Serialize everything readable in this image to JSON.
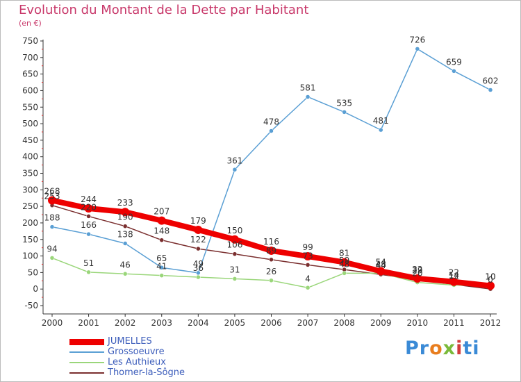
{
  "title": "Evolution du Montant de la Dette par Habitant",
  "subtitle": "(en €)",
  "brand": {
    "parts": [
      "Pr",
      "o",
      "x",
      "i",
      "ti"
    ],
    "colors": [
      "#3a8ad6",
      "#e87d1e",
      "#7aba3a",
      "#d33a3a",
      "#3a8ad6"
    ]
  },
  "chart_data": {
    "type": "line",
    "x": [
      "2000",
      "2001",
      "2002",
      "2003",
      "2004",
      "2005",
      "2006",
      "2007",
      "2008",
      "2009",
      "2010",
      "2011",
      "2012"
    ],
    "yticks": [
      -50,
      0,
      50,
      100,
      150,
      200,
      250,
      300,
      350,
      400,
      450,
      500,
      550,
      600,
      650,
      700,
      750
    ],
    "ylim": [
      -50,
      750
    ],
    "grid": false,
    "legend_position": "bottom-left",
    "series": [
      {
        "name": "JUMELLES",
        "color": "#ee0000",
        "values": [
          268,
          244,
          233,
          207,
          179,
          150,
          116,
          99,
          81,
          54,
          32,
          22,
          10
        ]
      },
      {
        "name": "Grossoeuvre",
        "color": "#5a9fd4",
        "values": [
          188,
          166,
          138,
          65,
          49,
          361,
          478,
          581,
          535,
          481,
          726,
          659,
          602
        ]
      },
      {
        "name": "Les Authieux",
        "color": "#9ad67a",
        "values": [
          94,
          51,
          46,
          41,
          36,
          31,
          26,
          4,
          48,
          48,
          20,
          12,
          10
        ]
      },
      {
        "name": "Thomer-la-Sôgne",
        "color": "#7a2e2e",
        "values": [
          253,
          220,
          190,
          148,
          122,
          106,
          89,
          73,
          59,
          44,
          29,
          14,
          0
        ]
      }
    ],
    "point_labels": [
      {
        "x": "2000",
        "text": "268"
      },
      {
        "x": "2000",
        "text": "253"
      },
      {
        "x": "2000",
        "text": "188"
      },
      {
        "x": "2000",
        "text": "94"
      },
      {
        "x": "2001",
        "text": "244"
      },
      {
        "x": "2001",
        "text": "220"
      },
      {
        "x": "2001",
        "text": "166"
      },
      {
        "x": "2001",
        "text": "51"
      },
      {
        "x": "2002",
        "text": "233"
      },
      {
        "x": "2002",
        "text": "190"
      },
      {
        "x": "2002",
        "text": "138"
      },
      {
        "x": "2002",
        "text": "46"
      },
      {
        "x": "2003",
        "text": "207"
      },
      {
        "x": "2003",
        "text": "148"
      },
      {
        "x": "2003",
        "text": "65"
      },
      {
        "x": "2003",
        "text": "41"
      },
      {
        "x": "2004",
        "text": "179"
      },
      {
        "x": "2004",
        "text": "122"
      },
      {
        "x": "2004",
        "text": "49"
      },
      {
        "x": "2004",
        "text": "36"
      },
      {
        "x": "2005",
        "text": "361"
      },
      {
        "x": "2005",
        "text": "150"
      },
      {
        "x": "2005",
        "text": "106"
      },
      {
        "x": "2005",
        "text": "31"
      },
      {
        "x": "2006",
        "text": "478"
      },
      {
        "x": "2006",
        "text": "116"
      },
      {
        "x": "2006",
        "text": "89"
      },
      {
        "x": "2006",
        "text": "26"
      },
      {
        "x": "2007",
        "text": "581"
      },
      {
        "x": "2007",
        "text": "99"
      },
      {
        "x": "2007",
        "text": "73"
      },
      {
        "x": "2007",
        "text": "4"
      },
      {
        "x": "2008",
        "text": "535"
      },
      {
        "x": "2008",
        "text": "81"
      },
      {
        "x": "2008",
        "text": "59"
      },
      {
        "x": "2008",
        "text": "48"
      },
      {
        "x": "2009",
        "text": "481"
      },
      {
        "x": "2009",
        "text": "54"
      },
      {
        "x": "2009",
        "text": "48"
      },
      {
        "x": "2009",
        "text": "44"
      },
      {
        "x": "2010",
        "text": "726"
      },
      {
        "x": "2010",
        "text": "32"
      },
      {
        "x": "2010",
        "text": "29"
      },
      {
        "x": "2010",
        "text": "20"
      },
      {
        "x": "2011",
        "text": "659"
      },
      {
        "x": "2011",
        "text": "22"
      },
      {
        "x": "2011",
        "text": "14"
      },
      {
        "x": "2011",
        "text": "12"
      },
      {
        "x": "2012",
        "text": "602"
      },
      {
        "x": "2012",
        "text": "10"
      },
      {
        "x": "2012",
        "text": "10"
      },
      {
        "x": "2012",
        "text": "0"
      }
    ]
  }
}
